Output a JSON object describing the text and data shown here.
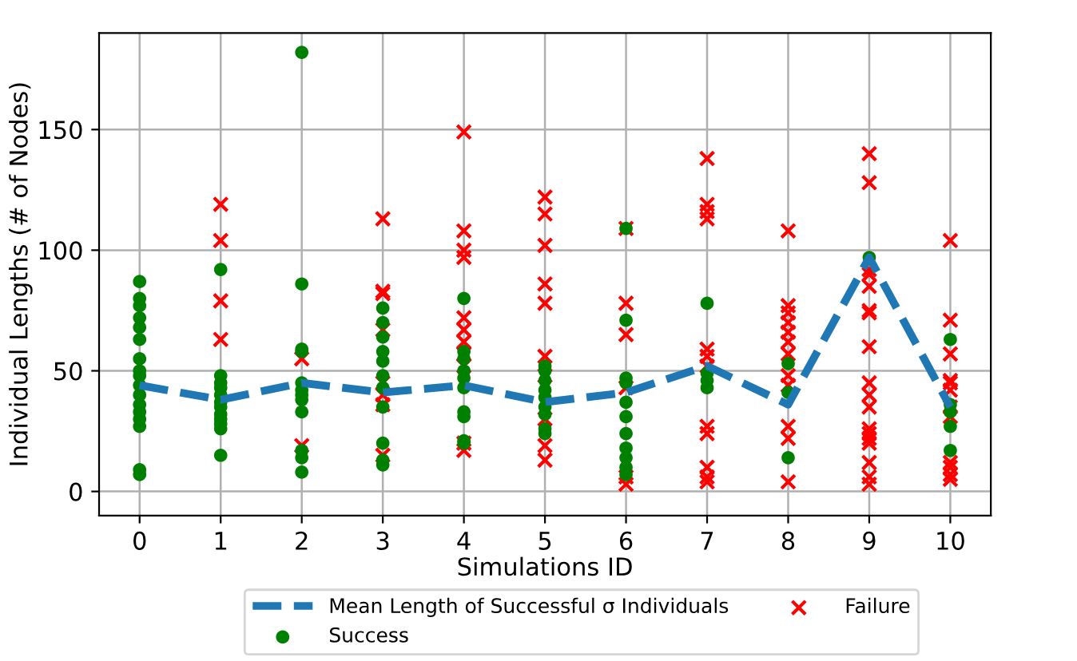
{
  "chart_data": {
    "type": "scatter",
    "xlabel": "Simulations ID",
    "ylabel": "Individual Lengths (# of Nodes)",
    "xlim": [
      -0.5,
      10.5
    ],
    "xticks": [
      0,
      1,
      2,
      3,
      4,
      5,
      6,
      7,
      8,
      9,
      10
    ],
    "ylim": [
      -10,
      190
    ],
    "yticks": [
      0,
      50,
      100,
      150
    ],
    "grid": true,
    "legend": "bottom",
    "series": [
      {
        "name": "Mean Length of Successful σ Individuals",
        "type": "line",
        "line_style": "dashed",
        "marker": "none",
        "color": "#1f77b4",
        "x": [
          0,
          1,
          2,
          3,
          4,
          5,
          6,
          7,
          8,
          9,
          10
        ],
        "values": [
          44,
          38,
          45,
          41,
          44,
          37,
          41,
          52,
          36,
          97,
          35
        ]
      },
      {
        "name": "Success",
        "marker": "circle",
        "color": "#008000",
        "x": [
          0,
          0,
          0,
          0,
          0,
          0,
          0,
          0,
          0,
          0,
          0,
          0,
          0,
          0,
          0,
          0,
          0,
          1,
          1,
          1,
          1,
          1,
          1,
          1,
          1,
          1,
          1,
          1,
          1,
          2,
          2,
          2,
          2,
          2,
          2,
          2,
          2,
          2,
          2,
          2,
          2,
          3,
          3,
          3,
          3,
          3,
          3,
          3,
          3,
          3,
          3,
          3,
          4,
          4,
          4,
          4,
          4,
          4,
          4,
          4,
          4,
          4,
          5,
          5,
          5,
          5,
          5,
          5,
          5,
          5,
          5,
          6,
          6,
          6,
          6,
          6,
          6,
          6,
          6,
          6,
          6,
          6,
          7,
          7,
          7,
          7,
          8,
          8,
          8,
          9,
          10,
          10,
          10,
          10,
          10
        ],
        "values": [
          87,
          80,
          77,
          72,
          68,
          63,
          55,
          50,
          48,
          44,
          40,
          36,
          33,
          30,
          27,
          9,
          7,
          92,
          48,
          45,
          43,
          40,
          37,
          35,
          32,
          30,
          28,
          26,
          15,
          182,
          86,
          59,
          58,
          45,
          42,
          40,
          38,
          33,
          17,
          14,
          8,
          76,
          70,
          64,
          58,
          54,
          48,
          43,
          35,
          20,
          13,
          11,
          80,
          58,
          55,
          50,
          47,
          43,
          33,
          31,
          21,
          20,
          52,
          50,
          46,
          42,
          39,
          35,
          32,
          26,
          24,
          109,
          71,
          47,
          45,
          37,
          31,
          24,
          18,
          14,
          10,
          7,
          78,
          49,
          46,
          43,
          53,
          41,
          14,
          97,
          63,
          36,
          33,
          27,
          17
        ]
      },
      {
        "name": "Failure",
        "marker": "cross",
        "color": "#ff0000",
        "x": [
          1,
          1,
          1,
          1,
          2,
          2,
          3,
          3,
          3,
          3,
          3,
          3,
          3,
          3,
          4,
          4,
          4,
          4,
          4,
          4,
          4,
          4,
          4,
          4,
          4,
          5,
          5,
          5,
          5,
          5,
          5,
          5,
          5,
          5,
          5,
          6,
          6,
          6,
          6,
          6,
          6,
          7,
          7,
          7,
          7,
          7,
          7,
          7,
          7,
          7,
          7,
          7,
          7,
          8,
          8,
          8,
          8,
          8,
          8,
          8,
          8,
          8,
          8,
          8,
          8,
          9,
          9,
          9,
          9,
          9,
          9,
          9,
          9,
          9,
          9,
          9,
          9,
          9,
          9,
          9,
          9,
          9,
          9,
          10,
          10,
          10,
          10,
          10,
          10,
          10,
          10,
          10,
          10,
          10,
          10
        ],
        "values": [
          119,
          104,
          79,
          63,
          55,
          19,
          113,
          83,
          82,
          67,
          45,
          40,
          36,
          15,
          149,
          108,
          100,
          97,
          72,
          67,
          62,
          57,
          52,
          20,
          17,
          122,
          115,
          102,
          86,
          78,
          56,
          48,
          30,
          19,
          13,
          109,
          78,
          65,
          43,
          6,
          3,
          138,
          119,
          116,
          113,
          59,
          56,
          52,
          27,
          24,
          10,
          6,
          4,
          108,
          77,
          74,
          70,
          66,
          62,
          57,
          48,
          44,
          27,
          22,
          4,
          140,
          128,
          92,
          90,
          85,
          75,
          74,
          60,
          45,
          40,
          35,
          26,
          24,
          22,
          20,
          12,
          6,
          3,
          104,
          71,
          57,
          46,
          45,
          42,
          35,
          31,
          12,
          10,
          7,
          5
        ]
      }
    ]
  }
}
